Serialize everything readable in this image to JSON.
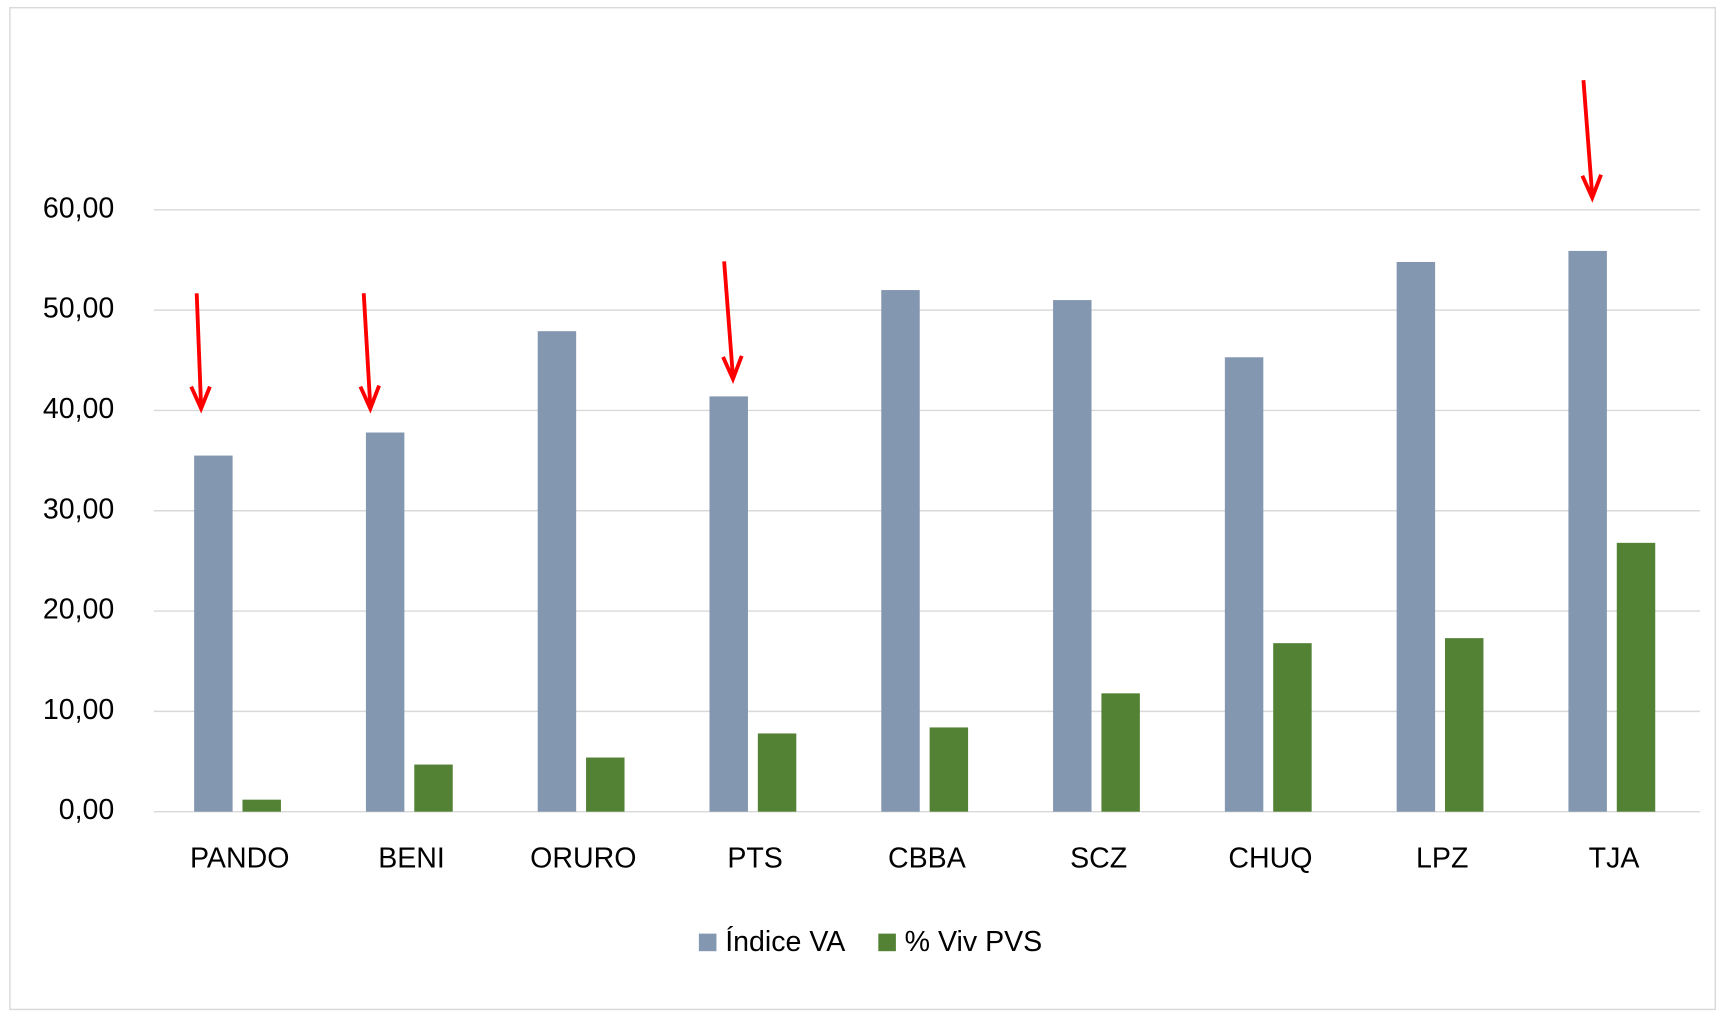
{
  "chart_data": {
    "type": "bar",
    "categories": [
      "PANDO",
      "BENI",
      "ORURO",
      "PTS",
      "CBBA",
      "SCZ",
      "CHUQ",
      "LPZ",
      "TJA"
    ],
    "series": [
      {
        "name": "Índice VA",
        "color": "#8497b0",
        "values": [
          35.5,
          37.8,
          47.9,
          41.4,
          52.0,
          51.0,
          45.3,
          54.8,
          55.9
        ]
      },
      {
        "name": "% Viv PVS",
        "color": "#548235",
        "values": [
          1.2,
          4.7,
          5.4,
          7.8,
          8.4,
          11.8,
          16.8,
          17.3,
          26.8
        ]
      }
    ],
    "ylim": [
      0,
      60
    ],
    "yticks": [
      {
        "value": 0,
        "label": "0,00"
      },
      {
        "value": 10,
        "label": "10,00"
      },
      {
        "value": 20,
        "label": "20,00"
      },
      {
        "value": 30,
        "label": "30,00"
      },
      {
        "value": 40,
        "label": "40,00"
      },
      {
        "value": 50,
        "label": "50,00"
      },
      {
        "value": 60,
        "label": "60,00"
      }
    ],
    "grid": true,
    "legend": "bottom"
  }
}
